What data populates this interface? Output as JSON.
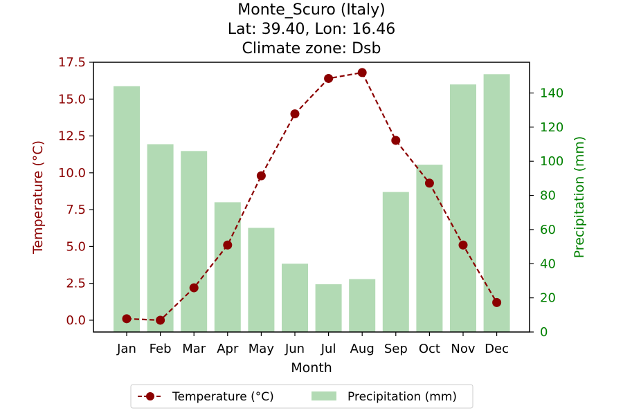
{
  "title_lines": [
    "Monte_Scuro (Italy)",
    "Lat: 39.40, Lon: 16.46",
    "Climate zone: Dsb"
  ],
  "chart_data": {
    "type": "bar+line",
    "categories": [
      "Jan",
      "Feb",
      "Mar",
      "Apr",
      "May",
      "Jun",
      "Jul",
      "Aug",
      "Sep",
      "Oct",
      "Nov",
      "Dec"
    ],
    "xlabel": "Month",
    "series": [
      {
        "name": "Temperature (°C)",
        "type": "line",
        "axis": "left",
        "color": "#8b0000",
        "values": [
          0.1,
          0.0,
          2.2,
          5.1,
          9.8,
          14.0,
          16.4,
          16.8,
          12.2,
          9.3,
          5.1,
          1.2
        ]
      },
      {
        "name": "Precipitation (mm)",
        "type": "bar",
        "axis": "right",
        "color": "#b2dab4",
        "values": [
          144,
          110,
          106,
          76,
          61,
          40,
          28,
          31,
          82,
          98,
          145,
          151
        ]
      }
    ],
    "yleft": {
      "label": "Temperature (°C)",
      "ylim": [
        -0.8,
        17.5
      ],
      "ticks": [
        "0.0",
        "2.5",
        "5.0",
        "7.5",
        "10.0",
        "12.5",
        "15.0",
        "17.5"
      ],
      "color": "#8b0000"
    },
    "yright": {
      "label": "Precipitation (mm)",
      "ylim": [
        0,
        158
      ],
      "ticks": [
        "0",
        "20",
        "40",
        "60",
        "80",
        "100",
        "120",
        "140"
      ],
      "color": "#008000"
    },
    "legend": {
      "position": "bottom-center",
      "entries": [
        "Temperature (°C)",
        "Precipitation (mm)"
      ]
    },
    "grid": false
  }
}
